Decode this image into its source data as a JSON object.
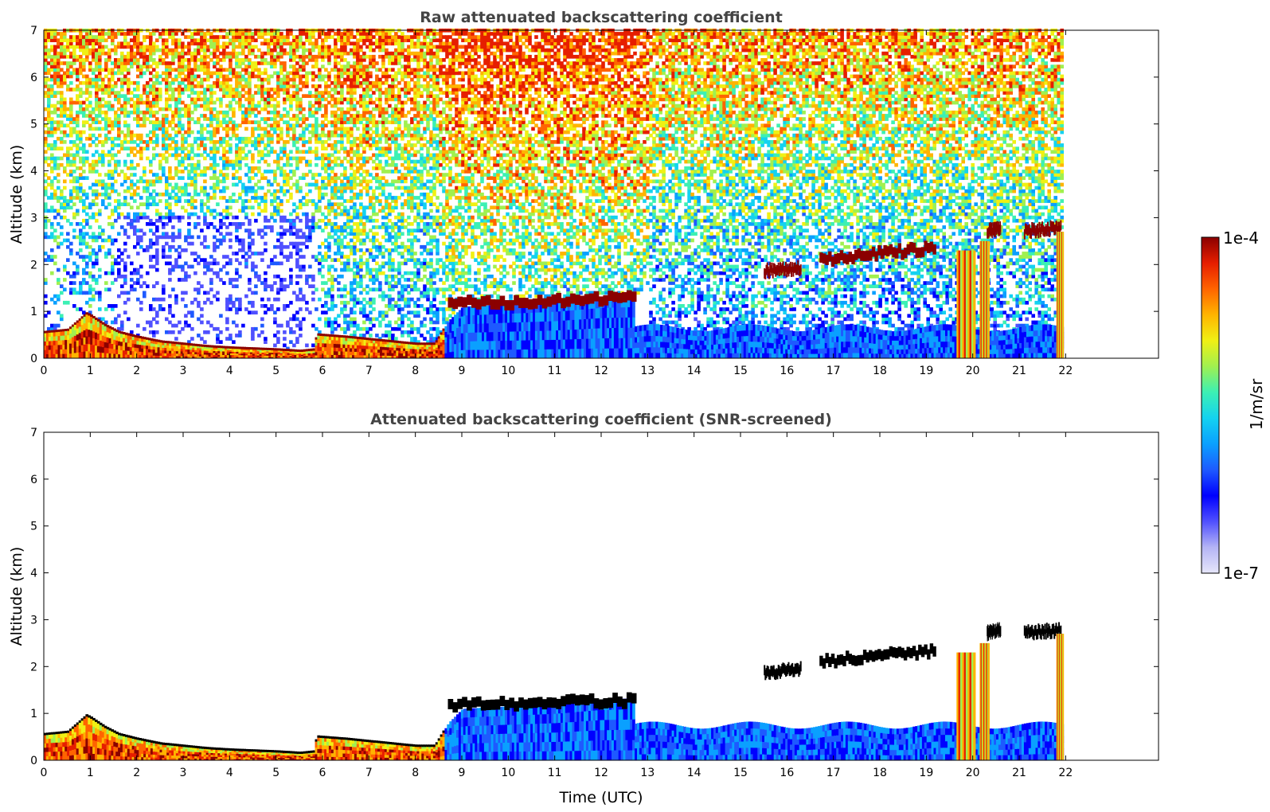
{
  "colors": {
    "colormap": [
      "#e6e6fa",
      "#b4b4f5",
      "#5050ff",
      "#0000ff",
      "#1e5aff",
      "#0aa0ff",
      "#14d2f0",
      "#3cf0b4",
      "#a0f050",
      "#f0f014",
      "#ffb400",
      "#ff6400",
      "#e61e00",
      "#8b0000"
    ],
    "cloud_fill": "#8b0000",
    "screened_cloud": "#000000"
  },
  "chart_data": [
    {
      "type": "heatmap",
      "title": "Raw attenuated backscattering coefficient",
      "xlabel": "",
      "ylabel": "Altitude (km)",
      "xlim": [
        0,
        24
      ],
      "ylim": [
        0,
        7
      ],
      "data_end_time": 21.95,
      "x_ticks": [
        "0",
        "1",
        "2",
        "3",
        "4",
        "5",
        "6",
        "7",
        "8",
        "9",
        "10",
        "11",
        "12",
        "13",
        "14",
        "15",
        "16",
        "17",
        "18",
        "19",
        "20",
        "21",
        "22"
      ],
      "y_ticks": [
        "0",
        "1",
        "2",
        "3",
        "4",
        "5",
        "6",
        "7"
      ],
      "boundary_layer_top_km": [
        [
          0,
          0.55
        ],
        [
          0.5,
          0.6
        ],
        [
          0.9,
          0.95
        ],
        [
          1.0,
          0.9
        ],
        [
          1.3,
          0.7
        ],
        [
          1.6,
          0.55
        ],
        [
          2,
          0.45
        ],
        [
          2.5,
          0.35
        ],
        [
          3,
          0.3
        ],
        [
          3.5,
          0.25
        ],
        [
          4,
          0.22
        ],
        [
          4.5,
          0.2
        ],
        [
          5,
          0.18
        ],
        [
          5.5,
          0.15
        ],
        [
          5.8,
          0.18
        ],
        [
          5.85,
          0.5
        ],
        [
          6.5,
          0.45
        ],
        [
          7,
          0.4
        ],
        [
          7.5,
          0.35
        ],
        [
          8,
          0.3
        ],
        [
          8.4,
          0.3
        ],
        [
          8.7,
          0.8
        ],
        [
          9,
          1.1
        ],
        [
          10,
          1.15
        ],
        [
          11,
          1.2
        ],
        [
          12,
          1.3
        ],
        [
          12.7,
          1.32
        ]
      ],
      "cloud_layers": [
        {
          "t0": 8.7,
          "t1": 12.75,
          "base_km": 1.05,
          "top_km": 1.35
        },
        {
          "t0": 15.5,
          "t1": 16.3,
          "base_km": 1.75,
          "top_km": 1.95
        },
        {
          "t0": 16.7,
          "t1": 19.2,
          "base_km": 2.0,
          "top_km": 2.6
        },
        {
          "t0": 20.3,
          "t1": 20.6,
          "base_km": 2.6,
          "top_km": 2.8
        },
        {
          "t0": 21.1,
          "t1": 21.9,
          "base_km": 2.6,
          "top_km": 2.8
        }
      ],
      "precip_columns": [
        {
          "t0": 19.65,
          "t1": 20.05,
          "top_km": 2.3
        },
        {
          "t0": 20.15,
          "t1": 20.35,
          "top_km": 2.5
        },
        {
          "t0": 21.8,
          "t1": 21.95,
          "top_km": 2.7
        }
      ]
    },
    {
      "type": "heatmap",
      "title": "Attenuated backscattering coefficient (SNR-screened)",
      "xlabel": "Time (UTC)",
      "ylabel": "Altitude (km)",
      "xlim": [
        0,
        24
      ],
      "ylim": [
        0,
        7
      ],
      "data_end_time": 21.95,
      "x_ticks": [
        "0",
        "1",
        "2",
        "3",
        "4",
        "5",
        "6",
        "7",
        "8",
        "9",
        "10",
        "11",
        "12",
        "13",
        "14",
        "15",
        "16",
        "17",
        "18",
        "19",
        "20",
        "21",
        "22"
      ],
      "y_ticks": [
        "0",
        "1",
        "2",
        "3",
        "4",
        "5",
        "6",
        "7"
      ],
      "cloud_layers": [
        {
          "t0": 8.7,
          "t1": 12.75,
          "base_km": 1.05,
          "top_km": 1.35
        },
        {
          "t0": 15.5,
          "t1": 16.3,
          "base_km": 1.75,
          "top_km": 1.95
        },
        {
          "t0": 16.7,
          "t1": 19.2,
          "base_km": 2.0,
          "top_km": 2.6
        },
        {
          "t0": 20.3,
          "t1": 20.6,
          "base_km": 2.6,
          "top_km": 2.8
        },
        {
          "t0": 21.1,
          "t1": 21.9,
          "base_km": 2.6,
          "top_km": 2.8
        }
      ],
      "precip_columns": [
        {
          "t0": 19.65,
          "t1": 20.05,
          "top_km": 2.3
        },
        {
          "t0": 20.15,
          "t1": 20.35,
          "top_km": 2.5
        },
        {
          "t0": 21.8,
          "t1": 21.95,
          "top_km": 2.7
        }
      ]
    }
  ],
  "colorbar": {
    "max_label": "1e-4",
    "min_label": "1e-7",
    "unit_label": "1/m/sr"
  }
}
